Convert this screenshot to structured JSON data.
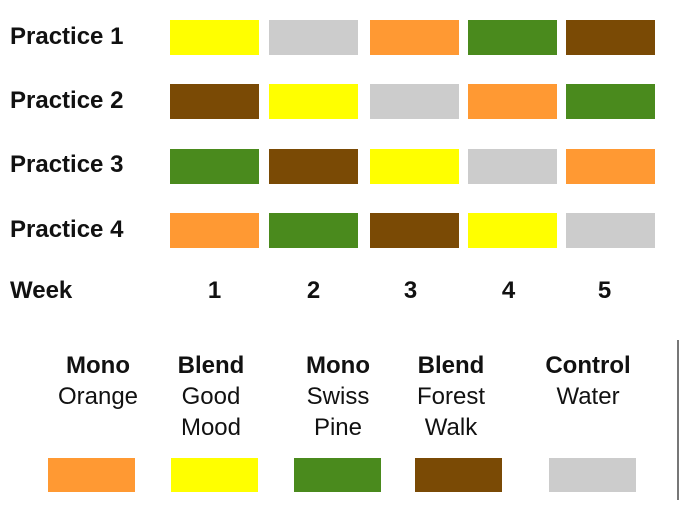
{
  "colors": {
    "orange": "#FF9933",
    "yellow": "#FFFF00",
    "green": "#4A8A1D",
    "brown": "#7A4A05",
    "gray": "#CCCCCC"
  },
  "rows": [
    {
      "label": "Practice 1",
      "cells": [
        "yellow",
        "gray",
        "orange",
        "green",
        "brown"
      ]
    },
    {
      "label": "Practice 2",
      "cells": [
        "brown",
        "yellow",
        "gray",
        "orange",
        "green"
      ]
    },
    {
      "label": "Practice 3",
      "cells": [
        "green",
        "brown",
        "yellow",
        "gray",
        "orange"
      ]
    },
    {
      "label": "Practice 4",
      "cells": [
        "orange",
        "green",
        "brown",
        "yellow",
        "gray"
      ]
    }
  ],
  "weeks": {
    "label": "Week",
    "numbers": [
      "1",
      "2",
      "3",
      "4",
      "5"
    ]
  },
  "legend": [
    {
      "type": "Mono",
      "name": "Orange",
      "color": "orange"
    },
    {
      "type": "Blend",
      "name": "Good\nMood",
      "color": "yellow"
    },
    {
      "type": "Mono",
      "name": "Swiss\nPine",
      "color": "green"
    },
    {
      "type": "Blend",
      "name": "Forest\nWalk",
      "color": "brown"
    },
    {
      "type": "Control",
      "name": "Water",
      "color": "gray"
    }
  ]
}
